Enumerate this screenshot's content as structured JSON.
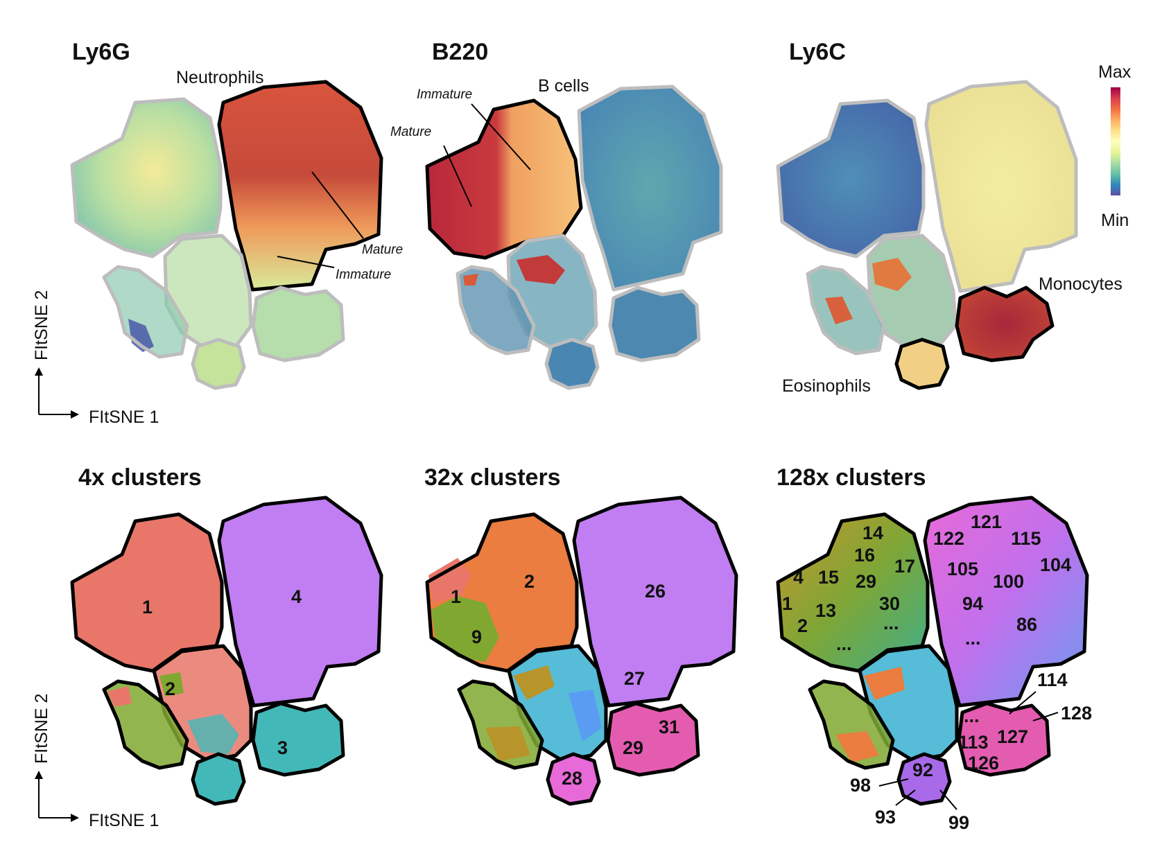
{
  "panels_top": [
    {
      "title": "Ly6G"
    },
    {
      "title": "B220"
    },
    {
      "title": "Ly6C"
    }
  ],
  "panels_bottom": [
    {
      "title": "4x clusters"
    },
    {
      "title": "32x clusters"
    },
    {
      "title": "128x clusters"
    }
  ],
  "annotations": {
    "neutrophils": "Neutrophils",
    "b_cells": "B cells",
    "monocytes": "Monocytes",
    "eosinophils": "Eosinophils",
    "mature": "Mature",
    "immature": "Immature"
  },
  "colorbar": {
    "max": "Max",
    "min": "Min",
    "colors": [
      "#9e0142",
      "#d53e4f",
      "#f46d43",
      "#fdae61",
      "#fee08b",
      "#ffffbf",
      "#e6f598",
      "#abdda4",
      "#66c2a5",
      "#3288bd",
      "#5e4fa2"
    ]
  },
  "axes": {
    "x": "FItSNE 1",
    "y": "FItSNE 2"
  },
  "clusters_4x": [
    "1",
    "4",
    "2",
    "3"
  ],
  "clusters_32x": [
    "1",
    "2",
    "9",
    "26",
    "27",
    "31",
    "29",
    "28"
  ],
  "clusters_128x": [
    "14",
    "16",
    "17",
    "4",
    "15",
    "29",
    "1",
    "13",
    "30",
    "2",
    "...",
    "...",
    "121",
    "122",
    "115",
    "105",
    "100",
    "104",
    "94",
    "86",
    "...",
    "114",
    "128",
    "...",
    "127",
    "113",
    "126",
    "92",
    "98",
    "93",
    "99"
  ],
  "cluster_colors": {
    "c1": "#e8776a",
    "c2": "#ea7d3f",
    "c3": "#43b8b8",
    "c4": "#c07ef2",
    "green": "#80a830",
    "olive": "#b8952a",
    "cyan": "#38b0d0",
    "blue": "#5a9cf2",
    "pink": "#e45cb0",
    "magenta": "#e869d8",
    "violet": "#a86ae8"
  }
}
